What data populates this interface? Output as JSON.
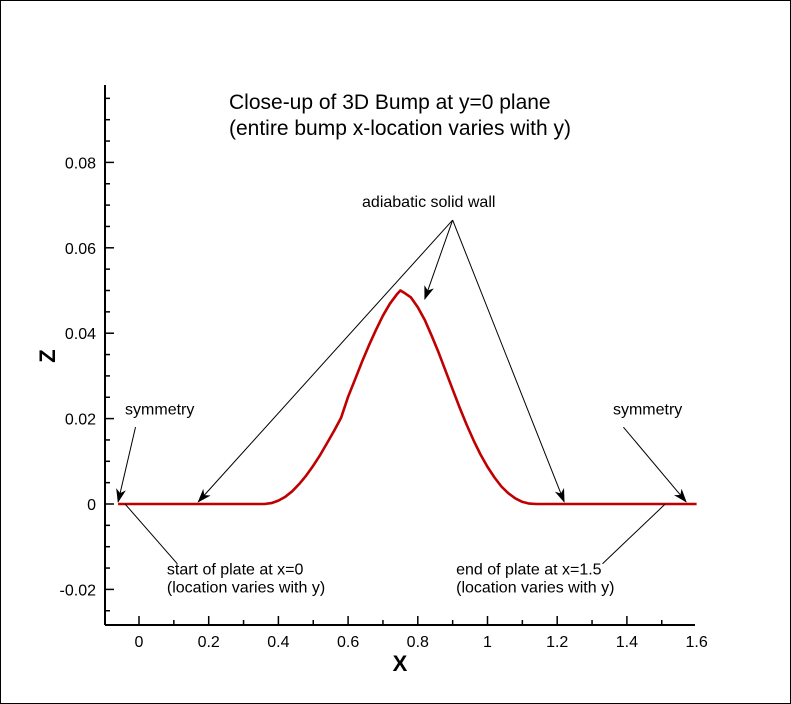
{
  "chart_data": {
    "type": "line",
    "title": [
      "Close-up of 3D Bump at y=0 plane",
      "(entire bump x-location varies with y)"
    ],
    "xlabel": "X",
    "ylabel": "Z",
    "xlim": [
      -0.1,
      1.6
    ],
    "ylim": [
      -0.03,
      0.1
    ],
    "x_ticks": [
      {
        "value": 0,
        "label": "0"
      },
      {
        "value": 0.2,
        "label": "0.2"
      },
      {
        "value": 0.4,
        "label": "0.4"
      },
      {
        "value": 0.6,
        "label": "0.6"
      },
      {
        "value": 0.8,
        "label": "0.8"
      },
      {
        "value": 1.0,
        "label": "1"
      },
      {
        "value": 1.2,
        "label": "1.2"
      },
      {
        "value": 1.4,
        "label": "1.4"
      },
      {
        "value": 1.6,
        "label": "1.6"
      }
    ],
    "y_ticks": [
      {
        "value": -0.02,
        "label": "-0.02"
      },
      {
        "value": 0,
        "label": "0"
      },
      {
        "value": 0.02,
        "label": "0.02"
      },
      {
        "value": 0.04,
        "label": "0.04"
      },
      {
        "value": 0.06,
        "label": "0.06"
      },
      {
        "value": 0.08,
        "label": "0.08"
      }
    ],
    "grid": false,
    "series": [
      {
        "color": "#c00000",
        "x": [
          -0.06,
          0.0,
          0.36,
          0.38,
          0.4,
          0.42,
          0.44,
          0.46,
          0.48,
          0.5,
          0.52,
          0.54,
          0.56,
          0.58,
          0.6,
          0.62,
          0.64,
          0.66,
          0.68,
          0.7,
          0.72,
          0.74,
          0.75,
          0.76,
          0.78,
          0.8,
          0.82,
          0.84,
          0.86,
          0.88,
          0.9,
          0.92,
          0.94,
          0.96,
          0.98,
          1.0,
          1.02,
          1.04,
          1.06,
          1.08,
          1.1,
          1.12,
          1.14,
          1.5,
          1.6
        ],
        "y": [
          0,
          0,
          0,
          0.0002,
          0.0008,
          0.0017,
          0.003,
          0.0047,
          0.0067,
          0.009,
          0.0115,
          0.0143,
          0.0172,
          0.0202,
          0.0251,
          0.0292,
          0.0333,
          0.0372,
          0.0408,
          0.0441,
          0.0469,
          0.0491,
          0.05,
          0.0495,
          0.0484,
          0.0461,
          0.0431,
          0.0394,
          0.0354,
          0.0311,
          0.0268,
          0.0226,
          0.0186,
          0.0149,
          0.0116,
          0.0087,
          0.0062,
          0.0041,
          0.0025,
          0.0013,
          0.0005,
          0.0001,
          0,
          0,
          0
        ]
      }
    ],
    "annotations": [
      {
        "id": "symmetry-left",
        "text": [
          "symmetry"
        ],
        "text_at": [
          -0.04,
          0.021
        ],
        "arrows_to": [
          [
            -0.06,
            0.0005
          ]
        ]
      },
      {
        "id": "symmetry-right",
        "text": [
          "symmetry"
        ],
        "text_at": [
          1.36,
          0.021
        ],
        "arrows_to": [
          [
            1.57,
            0.0005
          ]
        ]
      },
      {
        "id": "adiabatic-wall",
        "text": [
          "adiabatic solid wall"
        ],
        "text_at": [
          0.64,
          0.0695
        ],
        "arrows_to": [
          [
            0.17,
            0.0005
          ],
          [
            0.82,
            0.048
          ],
          [
            1.22,
            0.0005
          ]
        ],
        "arrow_from": [
          0.9,
          0.0665
        ]
      },
      {
        "id": "start-of-plate",
        "text": [
          "start of plate at x=0",
          "(location varies with y)"
        ],
        "text_at": [
          0.08,
          -0.0165
        ],
        "arrows_to": [
          [
            -0.04,
            0
          ]
        ],
        "arrow_from": [
          0.11,
          -0.014
        ],
        "arrowhead": false
      },
      {
        "id": "end-of-plate",
        "text": [
          "end of plate at x=1.5",
          "(location varies with y)"
        ],
        "text_at": [
          0.91,
          -0.0165
        ],
        "arrows_to": [
          [
            1.51,
            0
          ]
        ],
        "arrow_from": [
          1.33,
          -0.014
        ],
        "arrowhead": false
      }
    ]
  }
}
